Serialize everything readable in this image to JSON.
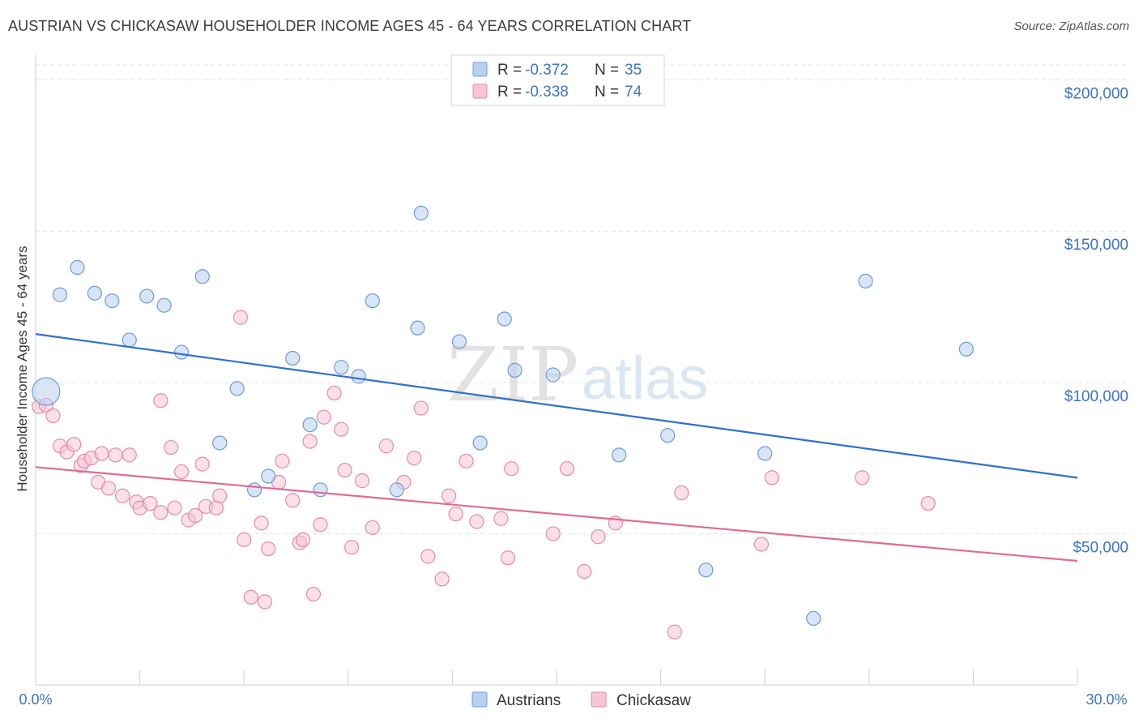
{
  "header": {
    "title": "AUSTRIAN VS CHICKASAW HOUSEHOLDER INCOME AGES 45 - 64 YEARS CORRELATION CHART",
    "source": "Source: ZipAtlas.com"
  },
  "watermark": {
    "part1": "ZIP",
    "part2": "atlas"
  },
  "colors": {
    "austrians_fill": "#b8d0f0",
    "austrians_stroke": "#6e9bd8",
    "austrians_line": "#2f6fce",
    "chickasaw_fill": "#f7c6d6",
    "chickasaw_stroke": "#e58aa9",
    "chickasaw_line": "#e06a95",
    "tick_label": "#3d74c4"
  },
  "legend": {
    "rows": [
      {
        "r_label": "R =",
        "r_value": "-0.372",
        "n_label": "N =",
        "n_value": "35"
      },
      {
        "r_label": "R =",
        "r_value": "-0.338",
        "n_label": "N =",
        "n_value": "74"
      }
    ]
  },
  "chart_data": {
    "type": "scatter",
    "ylabel": "Householder Income Ages 45 - 64 years",
    "x_tick_labels": [
      "0.0%",
      "30.0%"
    ],
    "y_tick_labels": [
      "$50,000",
      "$100,000",
      "$150,000",
      "$200,000"
    ],
    "y_ticks": [
      50000,
      100000,
      150000,
      200000
    ],
    "xlim": [
      0,
      30
    ],
    "ylim": [
      0,
      205000
    ],
    "grid": "horizontal dashed",
    "legend_position": "top-center",
    "series": [
      {
        "name": "Austrians",
        "trend": {
          "x": [
            0,
            30
          ],
          "y": [
            116000,
            68500
          ]
        },
        "points": [
          {
            "x": 0.3,
            "y": 97000,
            "big": true
          },
          {
            "x": 1.2,
            "y": 138000
          },
          {
            "x": 0.7,
            "y": 129000
          },
          {
            "x": 1.7,
            "y": 129500
          },
          {
            "x": 2.2,
            "y": 127000
          },
          {
            "x": 3.2,
            "y": 128500
          },
          {
            "x": 3.7,
            "y": 125500
          },
          {
            "x": 4.8,
            "y": 135000
          },
          {
            "x": 2.7,
            "y": 114000
          },
          {
            "x": 4.2,
            "y": 110000
          },
          {
            "x": 5.8,
            "y": 98000
          },
          {
            "x": 5.3,
            "y": 80000
          },
          {
            "x": 7.4,
            "y": 108000
          },
          {
            "x": 8.8,
            "y": 105000
          },
          {
            "x": 9.3,
            "y": 102000
          },
          {
            "x": 9.7,
            "y": 127000
          },
          {
            "x": 11.1,
            "y": 156000
          },
          {
            "x": 11.0,
            "y": 118000
          },
          {
            "x": 12.2,
            "y": 113500
          },
          {
            "x": 13.5,
            "y": 121000
          },
          {
            "x": 13.8,
            "y": 104000
          },
          {
            "x": 14.9,
            "y": 102500
          },
          {
            "x": 7.9,
            "y": 86000
          },
          {
            "x": 6.7,
            "y": 69000
          },
          {
            "x": 6.3,
            "y": 64500
          },
          {
            "x": 8.2,
            "y": 64500
          },
          {
            "x": 10.4,
            "y": 64500
          },
          {
            "x": 12.8,
            "y": 80000
          },
          {
            "x": 16.8,
            "y": 76000
          },
          {
            "x": 18.2,
            "y": 82500
          },
          {
            "x": 21.0,
            "y": 76500
          },
          {
            "x": 19.3,
            "y": 38000
          },
          {
            "x": 22.4,
            "y": 22000
          },
          {
            "x": 23.9,
            "y": 133500
          },
          {
            "x": 26.8,
            "y": 111000
          }
        ]
      },
      {
        "name": "Chickasaw",
        "trend": {
          "x": [
            0,
            30
          ],
          "y": [
            72000,
            41000
          ]
        },
        "points": [
          {
            "x": 0.1,
            "y": 92000
          },
          {
            "x": 0.3,
            "y": 92500
          },
          {
            "x": 0.5,
            "y": 89000
          },
          {
            "x": 0.7,
            "y": 79000
          },
          {
            "x": 0.9,
            "y": 77000
          },
          {
            "x": 1.1,
            "y": 79500
          },
          {
            "x": 1.3,
            "y": 72500
          },
          {
            "x": 1.4,
            "y": 74000
          },
          {
            "x": 1.6,
            "y": 75000
          },
          {
            "x": 1.8,
            "y": 67000
          },
          {
            "x": 1.9,
            "y": 76500
          },
          {
            "x": 2.1,
            "y": 65000
          },
          {
            "x": 2.3,
            "y": 76000
          },
          {
            "x": 2.5,
            "y": 62500
          },
          {
            "x": 2.7,
            "y": 76000
          },
          {
            "x": 2.9,
            "y": 60500
          },
          {
            "x": 3.0,
            "y": 58500
          },
          {
            "x": 3.3,
            "y": 60000
          },
          {
            "x": 3.6,
            "y": 57000
          },
          {
            "x": 3.6,
            "y": 94000
          },
          {
            "x": 3.9,
            "y": 78500
          },
          {
            "x": 4.0,
            "y": 58500
          },
          {
            "x": 4.2,
            "y": 70500
          },
          {
            "x": 4.4,
            "y": 54500
          },
          {
            "x": 4.6,
            "y": 56000
          },
          {
            "x": 4.8,
            "y": 73000
          },
          {
            "x": 4.9,
            "y": 59000
          },
          {
            "x": 5.2,
            "y": 58500
          },
          {
            "x": 5.3,
            "y": 62500
          },
          {
            "x": 5.9,
            "y": 121500
          },
          {
            "x": 6.0,
            "y": 48000
          },
          {
            "x": 6.2,
            "y": 29000
          },
          {
            "x": 6.5,
            "y": 53500
          },
          {
            "x": 6.6,
            "y": 27500
          },
          {
            "x": 6.7,
            "y": 45000
          },
          {
            "x": 7.0,
            "y": 67000
          },
          {
            "x": 7.1,
            "y": 74000
          },
          {
            "x": 7.4,
            "y": 61000
          },
          {
            "x": 7.6,
            "y": 47000
          },
          {
            "x": 7.7,
            "y": 48000
          },
          {
            "x": 7.9,
            "y": 80500
          },
          {
            "x": 8.0,
            "y": 30000
          },
          {
            "x": 8.2,
            "y": 53000
          },
          {
            "x": 8.3,
            "y": 88500
          },
          {
            "x": 8.6,
            "y": 96500
          },
          {
            "x": 8.8,
            "y": 84500
          },
          {
            "x": 8.9,
            "y": 71000
          },
          {
            "x": 9.1,
            "y": 45500
          },
          {
            "x": 9.4,
            "y": 67500
          },
          {
            "x": 9.7,
            "y": 52000
          },
          {
            "x": 10.1,
            "y": 79000
          },
          {
            "x": 10.6,
            "y": 67000
          },
          {
            "x": 10.9,
            "y": 75000
          },
          {
            "x": 11.1,
            "y": 91500
          },
          {
            "x": 11.3,
            "y": 42500
          },
          {
            "x": 11.7,
            "y": 35000
          },
          {
            "x": 11.9,
            "y": 62500
          },
          {
            "x": 12.1,
            "y": 56500
          },
          {
            "x": 12.4,
            "y": 74000
          },
          {
            "x": 12.7,
            "y": 54000
          },
          {
            "x": 13.4,
            "y": 55000
          },
          {
            "x": 13.6,
            "y": 42000
          },
          {
            "x": 13.7,
            "y": 71500
          },
          {
            "x": 14.9,
            "y": 50000
          },
          {
            "x": 15.3,
            "y": 71500
          },
          {
            "x": 15.8,
            "y": 37500
          },
          {
            "x": 16.2,
            "y": 49000
          },
          {
            "x": 16.7,
            "y": 53500
          },
          {
            "x": 18.4,
            "y": 17500
          },
          {
            "x": 18.6,
            "y": 63500
          },
          {
            "x": 20.9,
            "y": 46500
          },
          {
            "x": 21.2,
            "y": 68500
          },
          {
            "x": 23.8,
            "y": 68500
          },
          {
            "x": 25.7,
            "y": 60000
          }
        ]
      }
    ]
  }
}
